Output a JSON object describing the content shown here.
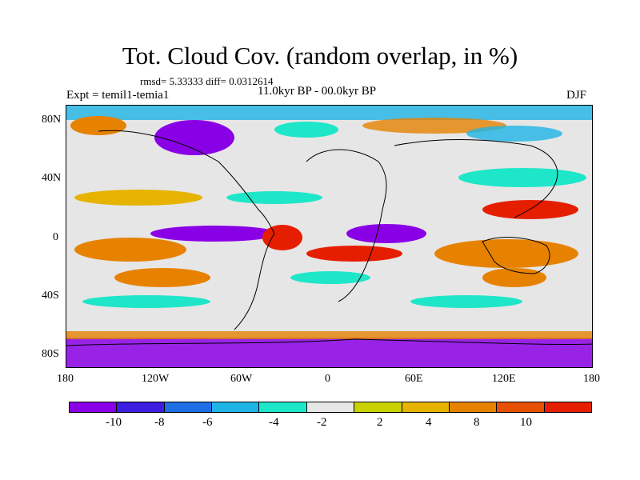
{
  "title": "Tot. Cloud Cov. (random overlap, in %)",
  "stats": "rmsd= 5.33333 diff= 0.0312614",
  "experiment": "Expt = temil1-temia1",
  "period": "11.0kyr BP - 00.0kyr BP",
  "season": "DJF",
  "lat_labels": [
    "80N",
    "40N",
    "0",
    "40S",
    "80S"
  ],
  "lon_labels": [
    "180",
    "120W",
    "60W",
    "0",
    "60E",
    "120E",
    "180"
  ],
  "colorbar": {
    "colors": [
      "#8a00e6",
      "#3c1ee0",
      "#1e6ee6",
      "#1eb4e6",
      "#1ee6c8",
      "#e6e6e6",
      "#c8d200",
      "#e6b400",
      "#e68200",
      "#e65000",
      "#e61e00"
    ],
    "labels": [
      "-10",
      "-8",
      "-6",
      "-4",
      "-2",
      "2",
      "4",
      "8",
      "10"
    ]
  }
}
